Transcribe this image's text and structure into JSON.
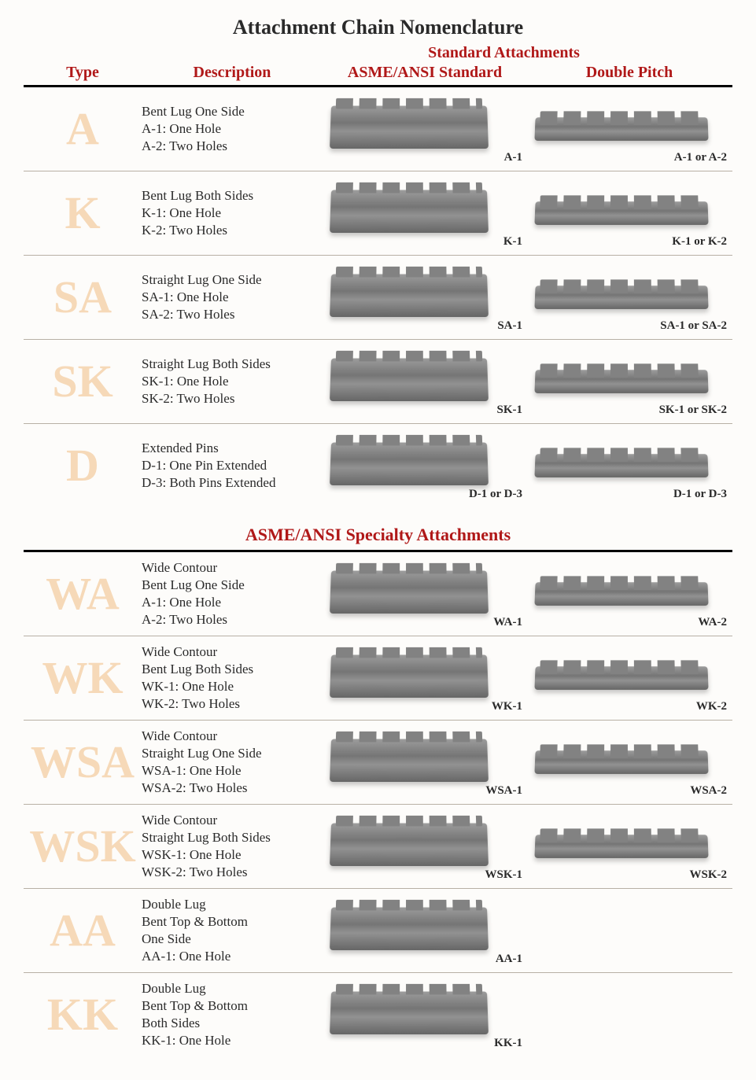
{
  "title": "Attachment Chain Nomenclature",
  "super_header": "Standard Attachments",
  "headers": {
    "type": "Type",
    "description": "Description",
    "asme": "ASME/ANSI Standard",
    "double": "Double Pitch"
  },
  "colors": {
    "header_red": "#b01818",
    "type_peach": "#f6d9b8",
    "text": "#2a2a2a",
    "rule": "#000000",
    "row_divider": "#b8b0a5",
    "background": "#fdfcfa"
  },
  "fonts": {
    "family": "Times New Roman",
    "title_size": 26,
    "header_size": 20,
    "type_letter_size": 58,
    "desc_size": 17,
    "caption_size": 15
  },
  "section1": {
    "rows": [
      {
        "type": "A",
        "desc": [
          "Bent Lug One Side",
          "A-1: One Hole",
          "A-2: Two Holes"
        ],
        "asme_caption": "A-1",
        "double_caption": "A-1 or A-2"
      },
      {
        "type": "K",
        "desc": [
          "Bent Lug Both Sides",
          "K-1: One Hole",
          "K-2: Two Holes"
        ],
        "asme_caption": "K-1",
        "double_caption": "K-1 or K-2"
      },
      {
        "type": "SA",
        "desc": [
          "Straight Lug One Side",
          "SA-1: One Hole",
          "SA-2: Two Holes"
        ],
        "asme_caption": "SA-1",
        "double_caption": "SA-1 or SA-2"
      },
      {
        "type": "SK",
        "desc": [
          "Straight Lug Both Sides",
          "SK-1: One Hole",
          "SK-2: Two Holes"
        ],
        "asme_caption": "SK-1",
        "double_caption": "SK-1 or SK-2"
      },
      {
        "type": "D",
        "desc": [
          "Extended Pins",
          "D-1: One Pin Extended",
          "D-3: Both Pins Extended"
        ],
        "asme_caption": "D-1 or D-3",
        "double_caption": "D-1 or D-3"
      }
    ]
  },
  "section2": {
    "title": "ASME/ANSI Specialty Attachments",
    "rows": [
      {
        "type": "WA",
        "desc": [
          "Wide Contour",
          "Bent Lug One Side",
          "A-1: One Hole",
          "A-2: Two Holes"
        ],
        "asme_caption": "WA-1",
        "double_caption": "WA-2"
      },
      {
        "type": "WK",
        "desc": [
          "Wide Contour",
          "Bent Lug Both Sides",
          "WK-1: One Hole",
          "WK-2: Two Holes"
        ],
        "asme_caption": "WK-1",
        "double_caption": "WK-2"
      },
      {
        "type": "WSA",
        "desc": [
          "Wide Contour",
          "Straight Lug One Side",
          "WSA-1: One Hole",
          "WSA-2: Two Holes"
        ],
        "asme_caption": "WSA-1",
        "double_caption": "WSA-2"
      },
      {
        "type": "WSK",
        "desc": [
          "Wide Contour",
          "Straight Lug Both Sides",
          "WSK-1: One Hole",
          "WSK-2: Two Holes"
        ],
        "asme_caption": "WSK-1",
        "double_caption": "WSK-2"
      },
      {
        "type": "AA",
        "desc": [
          "Double Lug",
          "Bent Top & Bottom",
          "One Side",
          "AA-1: One Hole"
        ],
        "asme_caption": "AA-1",
        "double_caption": ""
      },
      {
        "type": "KK",
        "desc": [
          "Double Lug",
          "Bent Top & Bottom",
          "Both Sides",
          "KK-1: One Hole"
        ],
        "asme_caption": "KK-1",
        "double_caption": ""
      }
    ]
  }
}
